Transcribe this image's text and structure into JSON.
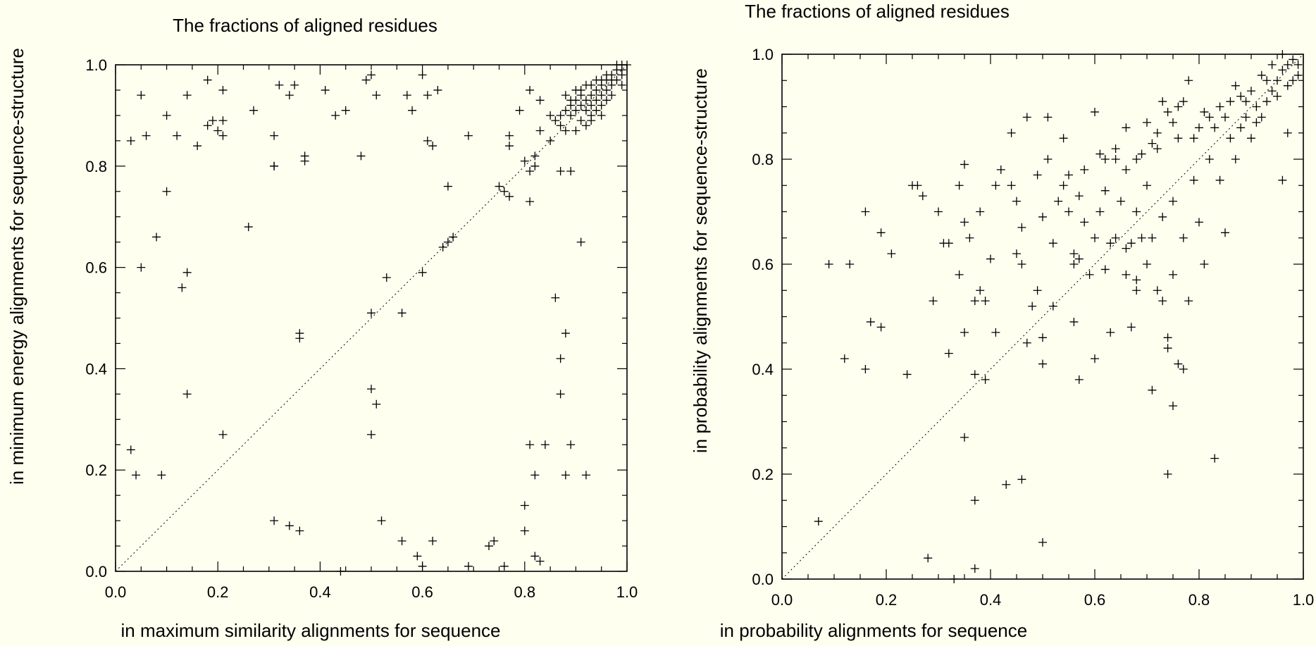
{
  "chart_data": [
    {
      "type": "scatter",
      "title": "The fractions of aligned residues",
      "xlabel": "in maximum similarity alignments for sequence",
      "ylabel": "in minimum energy alignments for sequence-structure",
      "xlim": [
        0,
        1
      ],
      "ylim": [
        0,
        1
      ],
      "xticks": [
        "0.0",
        "0.2",
        "0.4",
        "0.6",
        "0.8",
        "1.0"
      ],
      "yticks": [
        "0.0",
        "0.2",
        "0.4",
        "0.6",
        "0.8",
        "1.0"
      ],
      "reference_line": "y = x (dotted)",
      "grid": false,
      "marker": "+",
      "points": [
        [
          0.03,
          0.85
        ],
        [
          0.05,
          0.94
        ],
        [
          0.06,
          0.86
        ],
        [
          0.1,
          0.9
        ],
        [
          0.12,
          0.86
        ],
        [
          0.14,
          0.94
        ],
        [
          0.16,
          0.84
        ],
        [
          0.18,
          0.88
        ],
        [
          0.18,
          0.97
        ],
        [
          0.19,
          0.89
        ],
        [
          0.2,
          0.87
        ],
        [
          0.21,
          0.86
        ],
        [
          0.21,
          0.89
        ],
        [
          0.21,
          0.95
        ],
        [
          0.27,
          0.91
        ],
        [
          0.31,
          0.86
        ],
        [
          0.31,
          0.8
        ],
        [
          0.31,
          0.8
        ],
        [
          0.32,
          0.96
        ],
        [
          0.34,
          0.94
        ],
        [
          0.35,
          0.96
        ],
        [
          0.37,
          0.82
        ],
        [
          0.37,
          0.81
        ],
        [
          0.41,
          0.95
        ],
        [
          0.43,
          0.9
        ],
        [
          0.45,
          0.91
        ],
        [
          0.48,
          0.82
        ],
        [
          0.49,
          0.97
        ],
        [
          0.5,
          0.98
        ],
        [
          0.51,
          0.94
        ],
        [
          0.57,
          0.94
        ],
        [
          0.58,
          0.91
        ],
        [
          0.6,
          0.98
        ],
        [
          0.61,
          0.94
        ],
        [
          0.61,
          0.85
        ],
        [
          0.62,
          0.84
        ],
        [
          0.63,
          0.95
        ],
        [
          0.69,
          0.86
        ],
        [
          0.77,
          0.86
        ],
        [
          0.77,
          0.84
        ],
        [
          0.79,
          0.91
        ],
        [
          0.81,
          0.95
        ],
        [
          0.83,
          0.93
        ],
        [
          0.82,
          0.82
        ],
        [
          0.83,
          0.87
        ],
        [
          0.8,
          0.81
        ],
        [
          0.82,
          0.8
        ],
        [
          0.81,
          0.79
        ],
        [
          0.85,
          0.85
        ],
        [
          0.87,
          0.79
        ],
        [
          0.89,
          0.79
        ],
        [
          0.77,
          0.74
        ],
        [
          0.81,
          0.73
        ],
        [
          0.75,
          0.76
        ],
        [
          0.76,
          0.75
        ],
        [
          0.1,
          0.75
        ],
        [
          0.08,
          0.66
        ],
        [
          0.05,
          0.6
        ],
        [
          0.14,
          0.59
        ],
        [
          0.13,
          0.56
        ],
        [
          0.26,
          0.68
        ],
        [
          0.14,
          0.35
        ],
        [
          0.03,
          0.24
        ],
        [
          0.04,
          0.19
        ],
        [
          0.09,
          0.19
        ],
        [
          0.21,
          0.27
        ],
        [
          0.36,
          0.47
        ],
        [
          0.36,
          0.46
        ],
        [
          0.31,
          0.1
        ],
        [
          0.34,
          0.09
        ],
        [
          0.36,
          0.08
        ],
        [
          0.44,
          0.0
        ],
        [
          0.5,
          0.51
        ],
        [
          0.53,
          0.58
        ],
        [
          0.56,
          0.51
        ],
        [
          0.6,
          0.59
        ],
        [
          0.64,
          0.64
        ],
        [
          0.65,
          0.65
        ],
        [
          0.66,
          0.66
        ],
        [
          0.65,
          0.76
        ],
        [
          0.5,
          0.36
        ],
        [
          0.51,
          0.33
        ],
        [
          0.5,
          0.27
        ],
        [
          0.52,
          0.1
        ],
        [
          0.56,
          0.06
        ],
        [
          0.59,
          0.03
        ],
        [
          0.6,
          0.01
        ],
        [
          0.62,
          0.06
        ],
        [
          0.69,
          0.01
        ],
        [
          0.73,
          0.05
        ],
        [
          0.74,
          0.06
        ],
        [
          0.76,
          0.01
        ],
        [
          0.8,
          0.13
        ],
        [
          0.8,
          0.08
        ],
        [
          0.81,
          0.25
        ],
        [
          0.82,
          0.19
        ],
        [
          0.84,
          0.25
        ],
        [
          0.82,
          0.03
        ],
        [
          0.83,
          0.02
        ],
        [
          0.86,
          0.54
        ],
        [
          0.87,
          0.42
        ],
        [
          0.88,
          0.47
        ],
        [
          0.87,
          0.35
        ],
        [
          0.88,
          0.19
        ],
        [
          0.89,
          0.25
        ],
        [
          0.92,
          0.19
        ],
        [
          0.91,
          0.65
        ],
        [
          0.86,
          0.89
        ],
        [
          0.87,
          0.9
        ],
        [
          0.88,
          0.91
        ],
        [
          0.89,
          0.92
        ],
        [
          0.9,
          0.91
        ],
        [
          0.91,
          0.92
        ],
        [
          0.92,
          0.93
        ],
        [
          0.93,
          0.94
        ],
        [
          0.94,
          0.95
        ],
        [
          0.95,
          0.96
        ],
        [
          0.96,
          0.97
        ],
        [
          0.97,
          0.98
        ],
        [
          0.98,
          0.99
        ],
        [
          0.99,
          1.0
        ],
        [
          1.0,
          1.0
        ],
        [
          0.9,
          0.93
        ],
        [
          0.91,
          0.94
        ],
        [
          0.92,
          0.91
        ],
        [
          0.93,
          0.92
        ],
        [
          0.94,
          0.93
        ],
        [
          0.95,
          0.94
        ],
        [
          0.96,
          0.95
        ],
        [
          0.97,
          0.96
        ],
        [
          0.98,
          0.97
        ],
        [
          0.99,
          0.98
        ],
        [
          0.88,
          0.94
        ],
        [
          0.9,
          0.95
        ],
        [
          0.92,
          0.96
        ],
        [
          0.94,
          0.97
        ],
        [
          0.96,
          0.98
        ],
        [
          0.98,
          1.0
        ],
        [
          0.87,
          0.88
        ],
        [
          0.89,
          0.9
        ],
        [
          0.91,
          0.89
        ],
        [
          0.93,
          0.9
        ],
        [
          0.95,
          0.92
        ],
        [
          0.97,
          0.94
        ],
        [
          0.99,
          0.96
        ],
        [
          0.9,
          0.87
        ],
        [
          0.93,
          0.89
        ],
        [
          0.95,
          0.9
        ],
        [
          0.85,
          0.9
        ],
        [
          0.88,
          0.87
        ],
        [
          0.92,
          0.88
        ],
        [
          0.94,
          0.91
        ],
        [
          0.96,
          0.93
        ],
        [
          0.97,
          0.97
        ],
        [
          0.99,
          0.99
        ],
        [
          0.95,
          0.97
        ],
        [
          0.93,
          0.96
        ],
        [
          0.91,
          0.95
        ],
        [
          0.89,
          0.93
        ]
      ]
    },
    {
      "type": "scatter",
      "title": "The fractions of aligned residues",
      "xlabel": "in probability alignments for sequence",
      "ylabel": "in probability alignments for sequence-structure",
      "xlim": [
        0,
        1
      ],
      "ylim": [
        0,
        1
      ],
      "xticks": [
        "0.0",
        "0.2",
        "0.4",
        "0.6",
        "0.8",
        "1.0"
      ],
      "yticks": [
        "0.0",
        "0.2",
        "0.4",
        "0.6",
        "0.8",
        "1.0"
      ],
      "reference_line": "y = x (dotted)",
      "grid": false,
      "marker": "+",
      "points": [
        [
          0.07,
          0.11
        ],
        [
          0.09,
          0.6
        ],
        [
          0.13,
          0.6
        ],
        [
          0.12,
          0.42
        ],
        [
          0.16,
          0.4
        ],
        [
          0.16,
          0.7
        ],
        [
          0.17,
          0.49
        ],
        [
          0.19,
          0.66
        ],
        [
          0.19,
          0.48
        ],
        [
          0.21,
          0.62
        ],
        [
          0.24,
          0.39
        ],
        [
          0.25,
          0.75
        ],
        [
          0.26,
          0.75
        ],
        [
          0.27,
          0.73
        ],
        [
          0.29,
          0.53
        ],
        [
          0.3,
          0.7
        ],
        [
          0.31,
          0.64
        ],
        [
          0.32,
          0.64
        ],
        [
          0.32,
          0.43
        ],
        [
          0.34,
          0.58
        ],
        [
          0.34,
          0.75
        ],
        [
          0.35,
          0.79
        ],
        [
          0.35,
          0.68
        ],
        [
          0.35,
          0.47
        ],
        [
          0.35,
          0.27
        ],
        [
          0.36,
          0.65
        ],
        [
          0.37,
          0.15
        ],
        [
          0.37,
          0.53
        ],
        [
          0.37,
          0.39
        ],
        [
          0.38,
          0.55
        ],
        [
          0.38,
          0.7
        ],
        [
          0.39,
          0.38
        ],
        [
          0.39,
          0.53
        ],
        [
          0.4,
          0.61
        ],
        [
          0.41,
          0.47
        ],
        [
          0.41,
          0.75
        ],
        [
          0.42,
          0.78
        ],
        [
          0.43,
          0.18
        ],
        [
          0.44,
          0.75
        ],
        [
          0.44,
          0.85
        ],
        [
          0.45,
          0.72
        ],
        [
          0.45,
          0.62
        ],
        [
          0.46,
          0.67
        ],
        [
          0.46,
          0.6
        ],
        [
          0.46,
          0.19
        ],
        [
          0.47,
          0.45
        ],
        [
          0.47,
          0.88
        ],
        [
          0.48,
          0.52
        ],
        [
          0.49,
          0.55
        ],
        [
          0.49,
          0.77
        ],
        [
          0.5,
          0.41
        ],
        [
          0.5,
          0.46
        ],
        [
          0.5,
          0.69
        ],
        [
          0.51,
          0.8
        ],
        [
          0.51,
          0.88
        ],
        [
          0.52,
          0.52
        ],
        [
          0.52,
          0.64
        ],
        [
          0.53,
          0.72
        ],
        [
          0.54,
          0.75
        ],
        [
          0.54,
          0.84
        ],
        [
          0.55,
          0.7
        ],
        [
          0.55,
          0.77
        ],
        [
          0.56,
          0.62
        ],
        [
          0.56,
          0.6
        ],
        [
          0.56,
          0.49
        ],
        [
          0.57,
          0.38
        ],
        [
          0.57,
          0.61
        ],
        [
          0.57,
          0.73
        ],
        [
          0.58,
          0.68
        ],
        [
          0.58,
          0.78
        ],
        [
          0.59,
          0.58
        ],
        [
          0.6,
          0.42
        ],
        [
          0.6,
          0.65
        ],
        [
          0.6,
          0.89
        ],
        [
          0.61,
          0.7
        ],
        [
          0.61,
          0.81
        ],
        [
          0.62,
          0.59
        ],
        [
          0.62,
          0.74
        ],
        [
          0.63,
          0.47
        ],
        [
          0.63,
          0.64
        ],
        [
          0.64,
          0.65
        ],
        [
          0.64,
          0.82
        ],
        [
          0.65,
          0.72
        ],
        [
          0.66,
          0.58
        ],
        [
          0.66,
          0.63
        ],
        [
          0.66,
          0.78
        ],
        [
          0.67,
          0.48
        ],
        [
          0.67,
          0.64
        ],
        [
          0.68,
          0.55
        ],
        [
          0.68,
          0.7
        ],
        [
          0.68,
          0.57
        ],
        [
          0.69,
          0.81
        ],
        [
          0.69,
          0.65
        ],
        [
          0.7,
          0.6
        ],
        [
          0.7,
          0.75
        ],
        [
          0.71,
          0.65
        ],
        [
          0.71,
          0.36
        ],
        [
          0.72,
          0.82
        ],
        [
          0.72,
          0.55
        ],
        [
          0.73,
          0.53
        ],
        [
          0.73,
          0.69
        ],
        [
          0.74,
          0.44
        ],
        [
          0.74,
          0.46
        ],
        [
          0.74,
          0.2
        ],
        [
          0.75,
          0.33
        ],
        [
          0.75,
          0.58
        ],
        [
          0.75,
          0.72
        ],
        [
          0.76,
          0.41
        ],
        [
          0.76,
          0.84
        ],
        [
          0.77,
          0.4
        ],
        [
          0.77,
          0.65
        ],
        [
          0.78,
          0.53
        ],
        [
          0.79,
          0.76
        ],
        [
          0.8,
          0.68
        ],
        [
          0.81,
          0.6
        ],
        [
          0.82,
          0.8
        ],
        [
          0.83,
          0.23
        ],
        [
          0.84,
          0.76
        ],
        [
          0.85,
          0.66
        ],
        [
          0.86,
          0.84
        ],
        [
          0.87,
          0.8
        ],
        [
          0.88,
          0.86
        ],
        [
          0.89,
          0.88
        ],
        [
          0.9,
          0.84
        ],
        [
          0.91,
          0.9
        ],
        [
          0.92,
          0.88
        ],
        [
          0.93,
          0.91
        ],
        [
          0.94,
          0.93
        ],
        [
          0.95,
          0.95
        ],
        [
          0.96,
          0.97
        ],
        [
          0.97,
          0.98
        ],
        [
          0.98,
          0.99
        ],
        [
          0.99,
          0.98
        ],
        [
          0.96,
          0.76
        ],
        [
          0.97,
          0.85
        ],
        [
          0.9,
          0.93
        ],
        [
          0.88,
          0.92
        ],
        [
          0.86,
          0.91
        ],
        [
          0.84,
          0.9
        ],
        [
          0.82,
          0.88
        ],
        [
          0.8,
          0.86
        ],
        [
          0.78,
          0.95
        ],
        [
          0.76,
          0.9
        ],
        [
          0.74,
          0.89
        ],
        [
          0.72,
          0.85
        ],
        [
          0.7,
          0.87
        ],
        [
          0.68,
          0.8
        ],
        [
          0.66,
          0.86
        ],
        [
          0.64,
          0.8
        ],
        [
          0.62,
          0.8
        ],
        [
          0.93,
          0.95
        ],
        [
          0.95,
          0.92
        ],
        [
          0.97,
          0.94
        ],
        [
          0.99,
          0.96
        ],
        [
          0.92,
          0.96
        ],
        [
          0.94,
          0.98
        ],
        [
          0.96,
          1.0
        ],
        [
          0.98,
          0.95
        ],
        [
          0.91,
          0.87
        ],
        [
          0.89,
          0.91
        ],
        [
          0.87,
          0.94
        ],
        [
          0.85,
          0.88
        ],
        [
          0.83,
          0.86
        ],
        [
          0.81,
          0.89
        ],
        [
          0.79,
          0.84
        ],
        [
          0.77,
          0.91
        ],
        [
          0.75,
          0.87
        ],
        [
          0.73,
          0.91
        ],
        [
          0.71,
          0.83
        ],
        [
          0.28,
          0.04
        ],
        [
          0.33,
          0.0
        ],
        [
          0.37,
          0.02
        ],
        [
          0.5,
          0.07
        ]
      ]
    }
  ]
}
